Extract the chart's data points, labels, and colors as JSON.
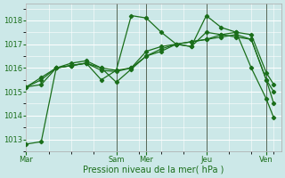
{
  "xlabel": "Pression niveau de la mer( hPa )",
  "bg_color": "#cce8e8",
  "grid_color": "#ffffff",
  "line_color": "#1a6e1a",
  "ylim": [
    1012.5,
    1018.7
  ],
  "yticks": [
    1013,
    1014,
    1015,
    1016,
    1017,
    1018
  ],
  "day_labels": [
    "Mar",
    "Sam",
    "Mer",
    "Jeu",
    "Ven"
  ],
  "day_x": [
    0,
    48,
    64,
    96,
    128
  ],
  "vline_x": [
    48,
    64,
    96,
    128
  ],
  "xlim": [
    0,
    136
  ],
  "series": [
    {
      "x": [
        0,
        8,
        16,
        24,
        32,
        40,
        48,
        56,
        64,
        72,
        80,
        88,
        96,
        104,
        112,
        120,
        128,
        132
      ],
      "y": [
        1012.8,
        1012.9,
        1016.0,
        1016.1,
        1016.2,
        1015.5,
        1015.9,
        1018.2,
        1018.1,
        1017.5,
        1017.0,
        1016.9,
        1018.2,
        1017.7,
        1017.5,
        1016.0,
        1014.7,
        1013.9
      ]
    },
    {
      "x": [
        0,
        8,
        16,
        24,
        32,
        40,
        48,
        56,
        64,
        72,
        80,
        88,
        96,
        104,
        112,
        120,
        128,
        132
      ],
      "y": [
        1015.2,
        1015.3,
        1016.0,
        1016.1,
        1016.2,
        1015.9,
        1015.85,
        1016.0,
        1016.5,
        1016.7,
        1017.0,
        1016.9,
        1017.5,
        1017.4,
        1017.3,
        1017.2,
        1015.5,
        1014.5
      ]
    },
    {
      "x": [
        0,
        8,
        16,
        24,
        32,
        40,
        48,
        56,
        64,
        72,
        80,
        88,
        96,
        104,
        112,
        120,
        128,
        132
      ],
      "y": [
        1015.2,
        1015.5,
        1016.0,
        1016.2,
        1016.3,
        1016.0,
        1015.9,
        1016.0,
        1016.7,
        1016.9,
        1017.0,
        1017.1,
        1017.2,
        1017.3,
        1017.4,
        1017.2,
        1015.5,
        1015.0
      ]
    },
    {
      "x": [
        0,
        8,
        16,
        24,
        32,
        40,
        48,
        56,
        64,
        72,
        80,
        88,
        96,
        104,
        112,
        120,
        128,
        132
      ],
      "y": [
        1015.2,
        1015.6,
        1016.0,
        1016.1,
        1016.2,
        1016.0,
        1015.4,
        1015.95,
        1016.5,
        1016.8,
        1017.0,
        1017.1,
        1017.2,
        1017.4,
        1017.5,
        1017.4,
        1015.8,
        1015.3
      ]
    }
  ]
}
